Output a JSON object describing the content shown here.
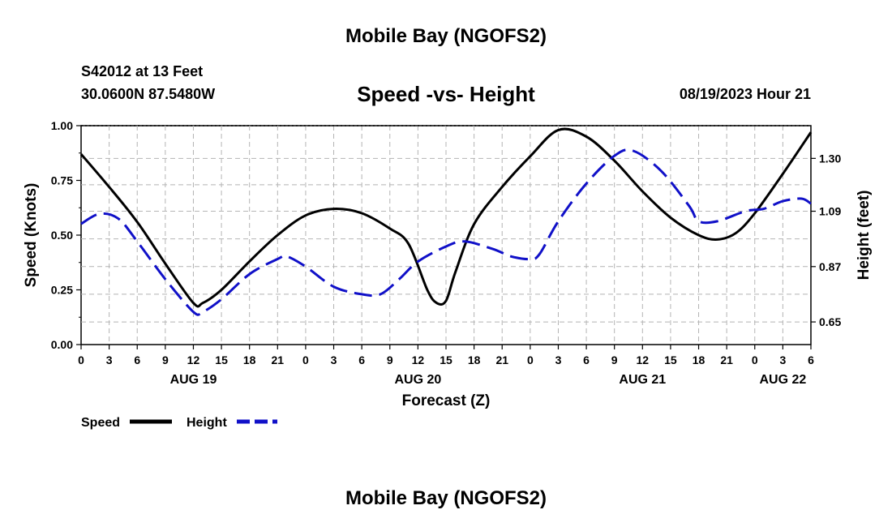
{
  "header": {
    "title": "Mobile Bay (NGOFS2)",
    "station": "S42012 at 13 Feet",
    "coords": "30.0600N  87.5480W",
    "subtitle": "Speed -vs- Height",
    "timestamp": "08/19/2023 Hour 21"
  },
  "footer": {
    "title": "Mobile Bay (NGOFS2)"
  },
  "chart_data": {
    "type": "line",
    "xlabel": "Forecast (Z)",
    "ylabel_left": "Speed (Knots)",
    "ylabel_right": "Height (feet)",
    "x_range_hours": [
      0,
      78
    ],
    "x_tick_step_hours": 3,
    "x_tick_labels": [
      "0",
      "3",
      "6",
      "9",
      "12",
      "15",
      "18",
      "21",
      "0",
      "3",
      "6",
      "9",
      "12",
      "15",
      "18",
      "21",
      "0",
      "3",
      "6",
      "9",
      "12",
      "15",
      "18",
      "21",
      "0",
      "3",
      "6"
    ],
    "day_labels": [
      {
        "label": "AUG 19",
        "hour": 12
      },
      {
        "label": "AUG 20",
        "hour": 36
      },
      {
        "label": "AUG 21",
        "hour": 60
      },
      {
        "label": "AUG 22",
        "hour": 75
      }
    ],
    "ylim_left": [
      0,
      1.0
    ],
    "yticks_left": [
      "0.00",
      "0.25",
      "0.50",
      "0.75",
      "1.00"
    ],
    "ylim_right": [
      0.56,
      1.43
    ],
    "yticks_right": [
      "0.65",
      "0.87",
      "1.09",
      "1.30"
    ],
    "grid": true,
    "legend_position": "bottom-left",
    "series": [
      {
        "name": "Speed",
        "axis": "left",
        "color": "#000000",
        "dash": "solid",
        "points": [
          [
            0,
            0.87
          ],
          [
            3,
            0.72
          ],
          [
            6,
            0.56
          ],
          [
            9,
            0.37
          ],
          [
            12,
            0.19
          ],
          [
            13,
            0.19
          ],
          [
            15,
            0.25
          ],
          [
            18,
            0.38
          ],
          [
            21,
            0.5
          ],
          [
            24,
            0.59
          ],
          [
            27,
            0.62
          ],
          [
            30,
            0.6
          ],
          [
            33,
            0.53
          ],
          [
            35,
            0.46
          ],
          [
            37,
            0.25
          ],
          [
            38,
            0.19
          ],
          [
            39,
            0.2
          ],
          [
            40,
            0.33
          ],
          [
            42,
            0.55
          ],
          [
            45,
            0.72
          ],
          [
            48,
            0.86
          ],
          [
            51,
            0.98
          ],
          [
            54,
            0.95
          ],
          [
            57,
            0.84
          ],
          [
            60,
            0.7
          ],
          [
            63,
            0.58
          ],
          [
            66,
            0.5
          ],
          [
            68,
            0.48
          ],
          [
            70,
            0.51
          ],
          [
            72,
            0.6
          ],
          [
            75,
            0.78
          ],
          [
            78,
            0.97
          ]
        ]
      },
      {
        "name": "Height",
        "axis": "right",
        "color": "#1010c8",
        "dash": "dashed",
        "points": [
          [
            0,
            1.04
          ],
          [
            2,
            1.08
          ],
          [
            4,
            1.06
          ],
          [
            6,
            0.97
          ],
          [
            9,
            0.82
          ],
          [
            12,
            0.69
          ],
          [
            13,
            0.69
          ],
          [
            15,
            0.74
          ],
          [
            18,
            0.84
          ],
          [
            21,
            0.9
          ],
          [
            22,
            0.91
          ],
          [
            24,
            0.87
          ],
          [
            27,
            0.79
          ],
          [
            30,
            0.76
          ],
          [
            32,
            0.76
          ],
          [
            34,
            0.82
          ],
          [
            36,
            0.89
          ],
          [
            39,
            0.95
          ],
          [
            41,
            0.97
          ],
          [
            44,
            0.94
          ],
          [
            46,
            0.91
          ],
          [
            48,
            0.9
          ],
          [
            49,
            0.92
          ],
          [
            51,
            1.05
          ],
          [
            54,
            1.2
          ],
          [
            57,
            1.31
          ],
          [
            59,
            1.33
          ],
          [
            62,
            1.25
          ],
          [
            65,
            1.11
          ],
          [
            66,
            1.05
          ],
          [
            68,
            1.05
          ],
          [
            71,
            1.09
          ],
          [
            73,
            1.1
          ],
          [
            75,
            1.13
          ],
          [
            77,
            1.14
          ],
          [
            78,
            1.12
          ]
        ]
      }
    ]
  }
}
